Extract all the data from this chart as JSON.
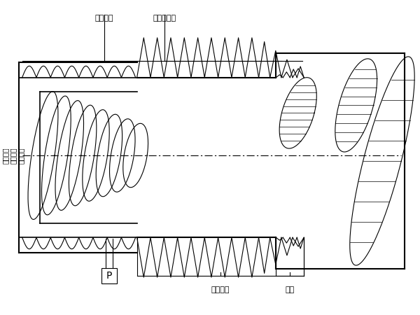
{
  "bg_color": "#ffffff",
  "fig_width": 6.0,
  "fig_height": 4.5,
  "dpi": 100,
  "labels": {
    "wan_zheng": "完整螺纹",
    "bu_wan_zheng": "不完整螺纹",
    "da_jing": "螺纹大径",
    "zhong_jing": "螺纹中径",
    "xiao_jing": "螺纹小径",
    "you_xiao": "有效螺纹",
    "luo_wei": "螺尾",
    "p_label": "P"
  },
  "line_color": "#000000"
}
